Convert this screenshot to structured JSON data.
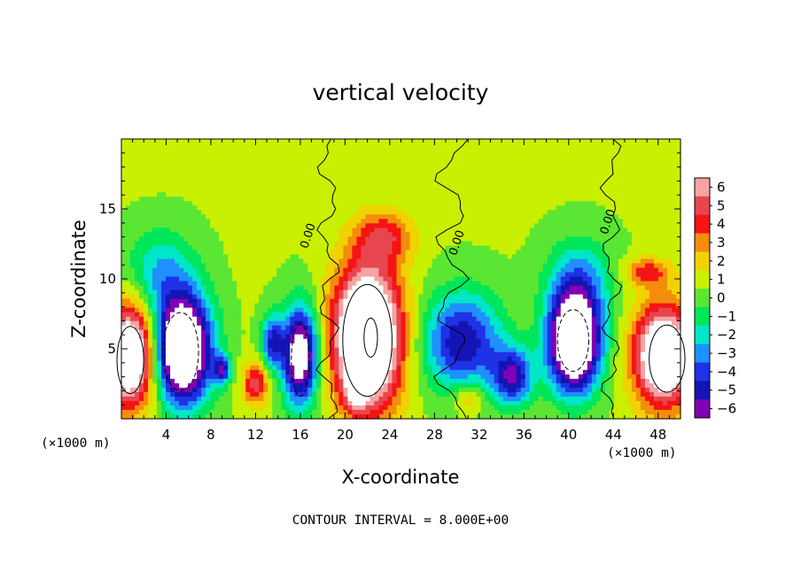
{
  "chart_data": {
    "type": "heatmap",
    "title": "vertical velocity",
    "xlabel": "X-coordinate",
    "ylabel": "Z-coordinate",
    "x_unit_left": "(×1000 m)",
    "x_unit_right": "(×1000 m)",
    "xlim": [
      0,
      50
    ],
    "ylim": [
      0,
      20
    ],
    "x_ticks": [
      "4",
      "8",
      "12",
      "16",
      "20",
      "24",
      "28",
      "32",
      "36",
      "40",
      "44",
      "48"
    ],
    "y_ticks": [
      "5",
      "10",
      "15"
    ],
    "grid": false,
    "footer": "CONTOUR INTERVAL = 8.000E+00",
    "contour_labels": [
      "0.00",
      "0.00",
      "0.00"
    ],
    "colorbar": {
      "position": "right",
      "labels": [
        "6",
        "5",
        "4",
        "3",
        "2",
        "1",
        "0",
        "−1",
        "−2",
        "−3",
        "−4",
        "−5",
        "−6"
      ],
      "colors": [
        "#f5a3a3",
        "#e8464e",
        "#f51414",
        "#f58c0c",
        "#f0d200",
        "#c8f000",
        "#5ae632",
        "#00e65a",
        "#00e6c8",
        "#1e90ff",
        "#1e32e6",
        "#1414b4",
        "#8200b4"
      ]
    },
    "updrafts": [
      {
        "x": 0.8,
        "z": 4.5,
        "amp": 10,
        "sx": 2.2,
        "sz": 3.5
      },
      {
        "x": 22.0,
        "z": 5.8,
        "amp": 12,
        "sx": 3.0,
        "sz": 5.0
      },
      {
        "x": 48.5,
        "z": 4.5,
        "amp": 10,
        "sx": 2.6,
        "sz": 3.5
      },
      {
        "x": 12.0,
        "z": 2.5,
        "amp": 4.5,
        "sx": 1.2,
        "sz": 1.5
      },
      {
        "x": 21.0,
        "z": 2.0,
        "amp": 3.5,
        "sx": 1.0,
        "sz": 1.2
      },
      {
        "x": 31.0,
        "z": 1.5,
        "amp": 2.5,
        "sx": 1.3,
        "sz": 1.2
      },
      {
        "x": 23.5,
        "z": 13.0,
        "amp": 3.5,
        "sx": 2.5,
        "sz": 1.8
      },
      {
        "x": 47.0,
        "z": 10.5,
        "amp": 3.5,
        "sx": 2.0,
        "sz": 1.0
      }
    ],
    "downdrafts": [
      {
        "x": 5.5,
        "z": 5.0,
        "amp": 12,
        "sx": 2.5,
        "sz": 3.8
      },
      {
        "x": 16.0,
        "z": 4.5,
        "amp": 9,
        "sx": 1.6,
        "sz": 3.5
      },
      {
        "x": 13.5,
        "z": 5.5,
        "amp": 5,
        "sx": 1.0,
        "sz": 2.0
      },
      {
        "x": 30.5,
        "z": 5.5,
        "amp": 6,
        "sx": 3.5,
        "sz": 3.5
      },
      {
        "x": 35.0,
        "z": 3.0,
        "amp": 6,
        "sx": 1.8,
        "sz": 2.0
      },
      {
        "x": 40.5,
        "z": 5.5,
        "amp": 12,
        "sx": 2.3,
        "sz": 3.5
      },
      {
        "x": 9.0,
        "z": 3.5,
        "amp": 5,
        "sx": 0.8,
        "sz": 1.0
      },
      {
        "x": 3.5,
        "z": 10.5,
        "amp": 3,
        "sx": 3.0,
        "sz": 3.0
      },
      {
        "x": 41.0,
        "z": 10.0,
        "amp": 3,
        "sx": 3.0,
        "sz": 3.0
      }
    ]
  }
}
